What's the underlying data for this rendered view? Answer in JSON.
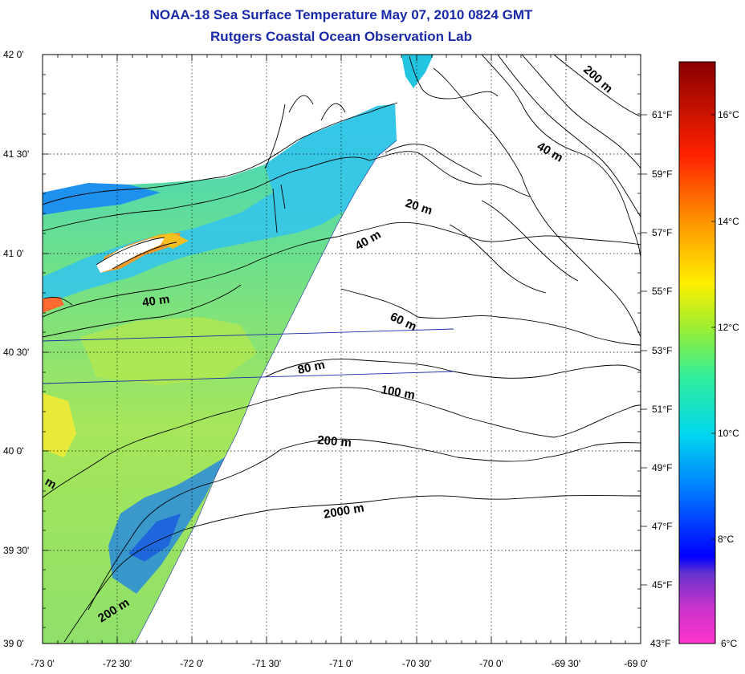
{
  "title": "NOAA-18 Sea Surface Temperature May 07, 2010 0824 GMT",
  "subtitle": "Rutgers Coastal Ocean Observation Lab",
  "map": {
    "lat_labels": [
      "42 0'",
      "41 30'",
      "41 0'",
      "40 30'",
      "40 0'",
      "39 30'",
      "39 0'"
    ],
    "lon_labels": [
      "-73 0'",
      "-72 30'",
      "-72 0'",
      "-71 30'",
      "-71 0'",
      "-70 30'",
      "-70 0'",
      "-69 30'",
      "-69 0'"
    ],
    "lat_range": [
      39.0,
      42.0
    ],
    "lon_range": [
      -73.0,
      -69.0
    ],
    "grid": "dotted",
    "contours": [
      {
        "label": "20 m"
      },
      {
        "label": "40 m"
      },
      {
        "label": "40 m",
        "id": "nearshore"
      },
      {
        "label": "60 m"
      },
      {
        "label": "80 m"
      },
      {
        "label": "100 m"
      },
      {
        "label": "200 m"
      },
      {
        "label": "200 m",
        "id": "northeast"
      },
      {
        "label": "200 m",
        "id": "southwest"
      },
      {
        "label": "2000 m"
      },
      {
        "label": "m",
        "id": "partial"
      }
    ]
  },
  "colorbar": {
    "fahrenheit_labels": [
      "61°F",
      "59°F",
      "57°F",
      "55°F",
      "53°F",
      "51°F",
      "49°F",
      "47°F",
      "45°F",
      "43°F"
    ],
    "celsius_labels": [
      "16°C",
      "14°C",
      "12°C",
      "10°C",
      "8°C",
      "6°C"
    ],
    "range_c": [
      6,
      17
    ],
    "colors": [
      "#ff33cc",
      "#8833cc",
      "#0000ff",
      "#0088ff",
      "#00e0e0",
      "#33ee88",
      "#ccee22",
      "#ffee00",
      "#ff9900",
      "#ff2200",
      "#990000"
    ]
  }
}
